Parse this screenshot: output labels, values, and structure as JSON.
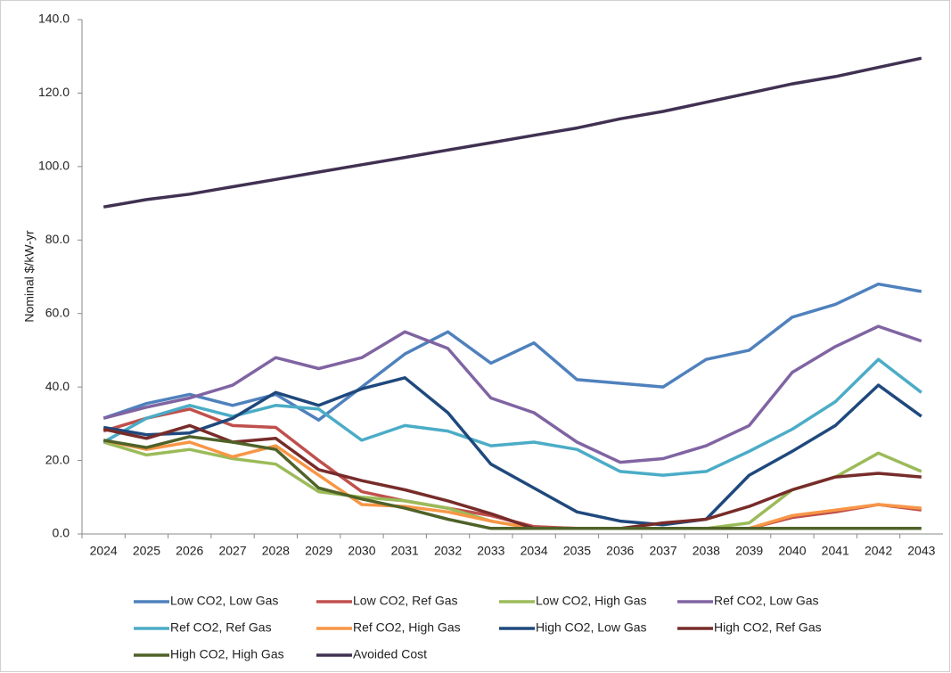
{
  "chart_data": {
    "type": "line",
    "y_label": "Nominal $/kW-yr",
    "categories": [
      "2024",
      "2025",
      "2026",
      "2027",
      "2028",
      "2029",
      "2030",
      "2031",
      "2032",
      "2033",
      "2034",
      "2035",
      "2036",
      "2037",
      "2038",
      "2039",
      "2040",
      "2041",
      "2042",
      "2043"
    ],
    "ylim": [
      0,
      140
    ],
    "yticks": [
      {
        "value": 0,
        "label": "0.0"
      },
      {
        "value": 20,
        "label": "20.0"
      },
      {
        "value": 40,
        "label": "40.0"
      },
      {
        "value": 60,
        "label": "60.0"
      },
      {
        "value": 80,
        "label": "80.0"
      },
      {
        "value": 100,
        "label": "100.0"
      },
      {
        "value": 120,
        "label": "120.0"
      },
      {
        "value": 140,
        "label": "140.0"
      }
    ],
    "grid": false,
    "legend": "bottom",
    "series": [
      {
        "name": "Low CO2, Low Gas",
        "color": "#4f81bd",
        "values": [
          31.5,
          35.5,
          38,
          35,
          38,
          31,
          40,
          49,
          55,
          46.5,
          52,
          42,
          41,
          40,
          47.5,
          50,
          59,
          62.5,
          68,
          66
        ]
      },
      {
        "name": "Low CO2, Ref Gas",
        "color": "#c0504d",
        "values": [
          28,
          31.5,
          34,
          29.5,
          29,
          20,
          11.5,
          9,
          7,
          5,
          2,
          1.5,
          1.5,
          1.5,
          1.5,
          1.5,
          4.5,
          6,
          8,
          6.5
        ]
      },
      {
        "name": "Low CO2, High Gas",
        "color": "#9bbb59",
        "values": [
          25,
          21.5,
          23,
          20.5,
          19,
          11.5,
          10,
          9,
          7,
          3.5,
          1.5,
          1.5,
          1.5,
          1.5,
          1.5,
          3,
          12,
          15.5,
          22,
          17
        ]
      },
      {
        "name": "Ref CO2, Low Gas",
        "color": "#8064a2",
        "values": [
          31.5,
          34.5,
          37,
          40.5,
          48,
          45,
          48,
          55,
          50.5,
          37,
          33,
          25,
          19.5,
          20.5,
          24,
          29.5,
          44,
          51,
          56.5,
          52.5
        ]
      },
      {
        "name": "Ref CO2, Ref Gas",
        "color": "#4bacc6",
        "values": [
          25,
          31.5,
          35,
          32,
          35,
          34,
          25.5,
          29.5,
          28,
          24,
          25,
          23,
          17,
          16,
          17,
          22.5,
          28.5,
          36,
          47.5,
          38.5
        ]
      },
      {
        "name": "Ref CO2, High Gas",
        "color": "#f79646",
        "values": [
          25.5,
          23,
          25,
          21,
          24,
          16,
          8,
          7.5,
          6,
          3.5,
          1.5,
          1.5,
          1.5,
          1.5,
          1.5,
          1.5,
          5,
          6.5,
          8,
          7
        ]
      },
      {
        "name": "High CO2, Low Gas",
        "color": "#1f497d",
        "values": [
          29,
          27,
          27.5,
          31.5,
          38.5,
          35,
          39.5,
          42.5,
          33,
          19,
          12.5,
          6,
          3.5,
          2.5,
          4,
          16,
          22.5,
          29.5,
          40.5,
          32
        ]
      },
      {
        "name": "High CO2, Ref Gas",
        "color": "#772c2a",
        "values": [
          28.5,
          26,
          29.5,
          25,
          26,
          17.5,
          14.5,
          12,
          9,
          5.5,
          1.5,
          1.5,
          1.5,
          3,
          4,
          7.5,
          12,
          15.5,
          16.5,
          15.5
        ]
      },
      {
        "name": "High CO2, High Gas",
        "color": "#4f6228",
        "values": [
          25.5,
          23.5,
          26.5,
          25,
          23,
          12.5,
          9.5,
          7,
          4,
          1.5,
          1.5,
          1.5,
          1.5,
          1.5,
          1.5,
          1.5,
          1.5,
          1.5,
          1.5,
          1.5
        ]
      },
      {
        "name": "Avoided Cost",
        "color": "#403152",
        "values": [
          89,
          91,
          92.5,
          94.5,
          96.5,
          98.5,
          100.5,
          102.5,
          104.5,
          106.5,
          108.5,
          110.5,
          113,
          115,
          117.5,
          120,
          122.5,
          124.5,
          127,
          129.5
        ]
      }
    ]
  }
}
